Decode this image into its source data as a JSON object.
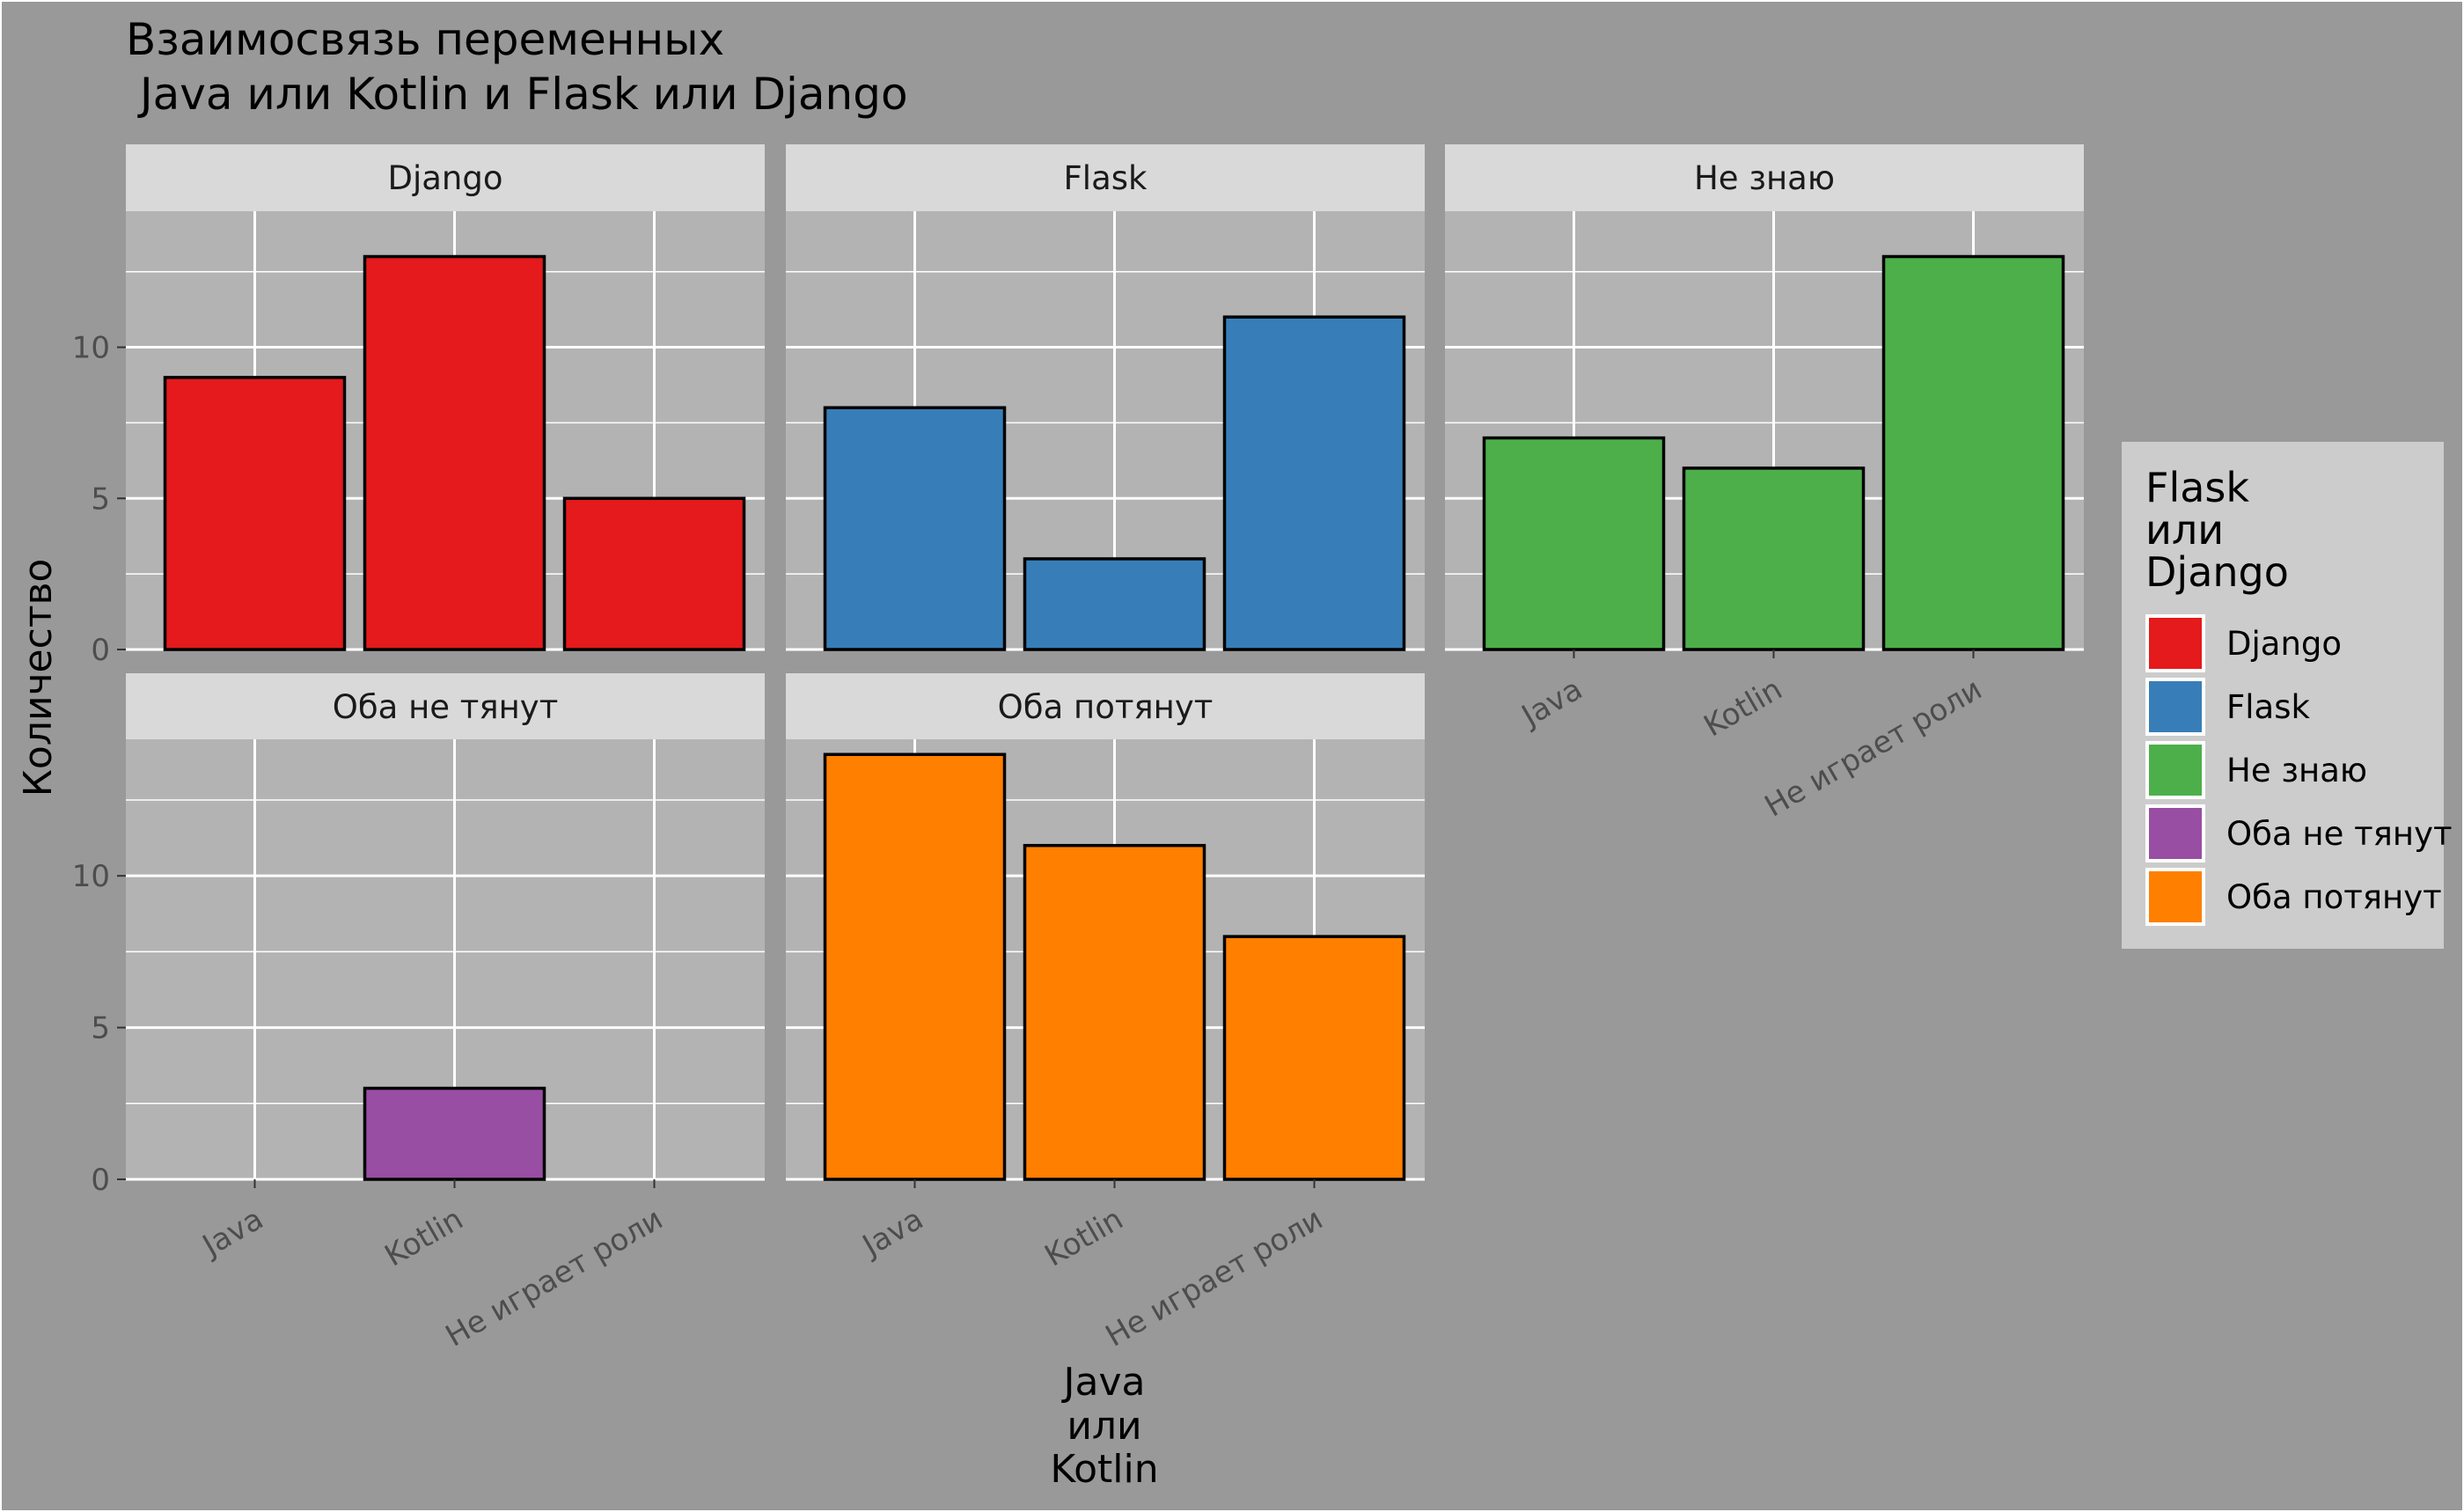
{
  "chart_data": {
    "type": "bar",
    "layout": "facet_wrap",
    "title_lines": [
      "Взаимосвязь переменных",
      " Java или Kotlin и Flask или Django"
    ],
    "xlabel_lines": [
      "Java",
      "или",
      "Kotlin"
    ],
    "ylabel": "Количество",
    "categories": [
      "Java",
      "Kotlin",
      "Не играет роли"
    ],
    "y_ticks": [
      0,
      5,
      10
    ],
    "ylim": [
      0,
      14.5
    ],
    "legend_title_lines": [
      "Flask",
      "или",
      "Django"
    ],
    "legend_placement": "right",
    "grid": true,
    "colors": {
      "background": "#999999",
      "panel": "#b3b3b3",
      "strip": "#d9d9d9",
      "legend_bg": "#cccccc",
      "grid": "#ffffff",
      "bar_outline": "#000000"
    },
    "series": [
      {
        "name": "Django",
        "color": "#e41a1c",
        "values": [
          9,
          13,
          5
        ]
      },
      {
        "name": "Flask",
        "color": "#377eb8",
        "values": [
          8,
          3,
          11
        ]
      },
      {
        "name": "Не знаю",
        "color": "#4daf4a",
        "values": [
          7,
          6,
          13
        ]
      },
      {
        "name": "Оба не тянут",
        "color": "#984ea3",
        "values": [
          0,
          3,
          0
        ]
      },
      {
        "name": "Оба потянут",
        "color": "#ff7f00",
        "values": [
          14,
          11,
          8
        ]
      }
    ]
  }
}
